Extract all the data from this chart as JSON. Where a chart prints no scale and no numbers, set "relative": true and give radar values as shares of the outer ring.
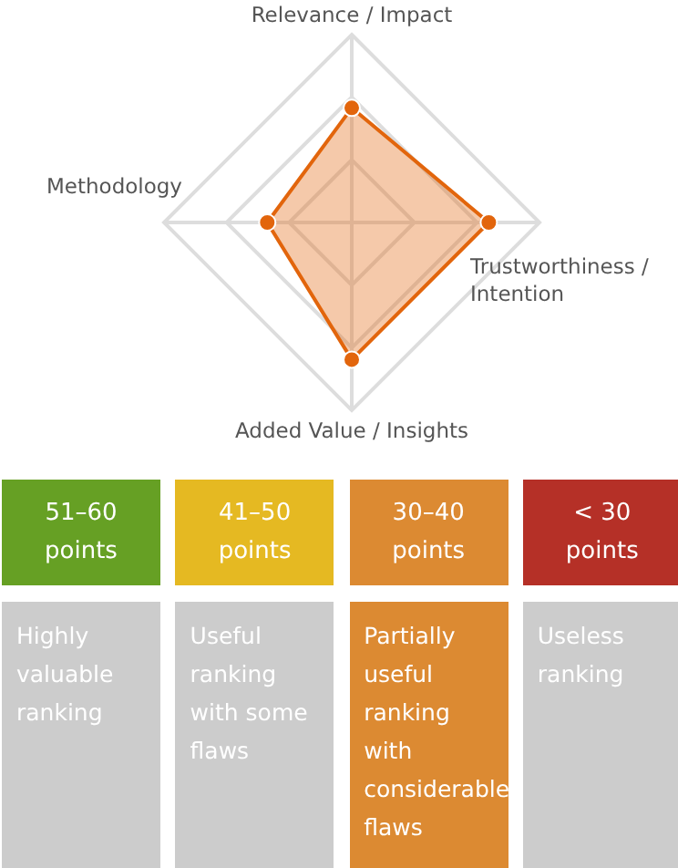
{
  "chart_data": [
    {
      "type": "radar",
      "relative": true,
      "categories": [
        "Relevance / Impact",
        "Trustworthiness / Intention",
        "Added Value / Insights",
        "Methodology"
      ],
      "grid": true,
      "marker": "circle",
      "series": [
        {
          "color": "#e2650c",
          "values": [
            0.61,
            0.73,
            0.73,
            0.45
          ]
        }
      ]
    },
    {
      "type": "other",
      "categories": [
        "51–60 points",
        "41–50 points",
        "30–40 points",
        "< 30 points",
        "Highly valuable ranking",
        "Useful ranking with some flaws",
        "Partially useful ranking with considerable flaws",
        "Useless ranking"
      ],
      "colors": [
        "#66a024",
        "#e5b922",
        "#dc8a32",
        "#b53027",
        "#cccccc",
        "#cccccc",
        "#dc8a32",
        "#cccccc"
      ]
    }
  ]
}
